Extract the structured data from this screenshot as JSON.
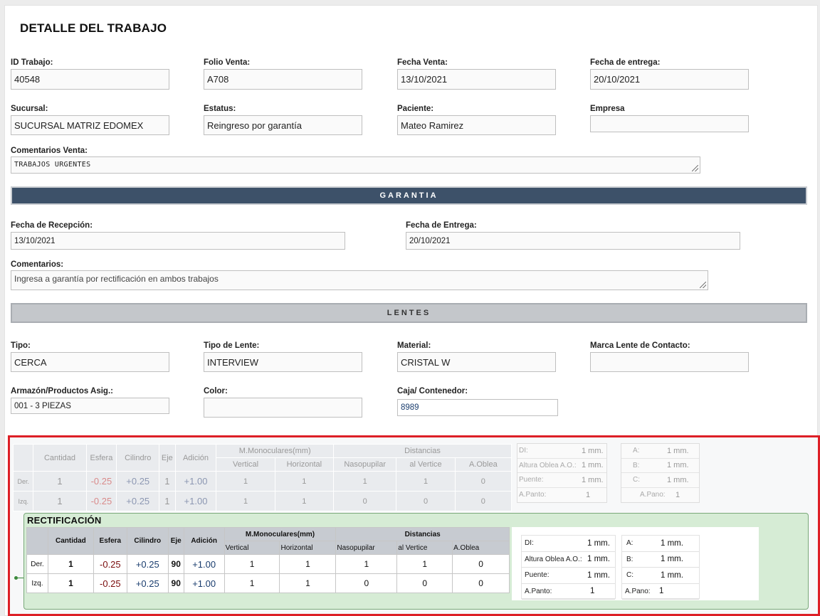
{
  "page": {
    "title": "DETALLE DEL TRABAJO"
  },
  "job": {
    "id_label": "ID Trabajo:",
    "id_value": "40548",
    "folio_label": "Folio Venta:",
    "folio_value": "A708",
    "fecha_venta_label": "Fecha Venta:",
    "fecha_venta_value": "13/10/2021",
    "fecha_entrega_label": "Fecha de entrega:",
    "fecha_entrega_value": "20/10/2021",
    "sucursal_label": "Sucursal:",
    "sucursal_value": "SUCURSAL MATRIZ EDOMEX",
    "estatus_label": "Estatus:",
    "estatus_value": "Reingreso por garantía",
    "paciente_label": "Paciente:",
    "paciente_value": "Mateo Ramirez",
    "empresa_label": "Empresa",
    "empresa_value": "",
    "comentarios_label": "Comentarios Venta:",
    "comentarios_value": "TRABAJOS URGENTES"
  },
  "garantia": {
    "header": "GARANTIA",
    "recepcion_label": "Fecha de Recepción:",
    "recepcion_value": "13/10/2021",
    "entrega_label": "Fecha de Entrega:",
    "entrega_value": "20/10/2021",
    "comentarios_label": "Comentarios:",
    "comentarios_value": "Ingresa a garantía por rectificación en ambos trabajos"
  },
  "lentes": {
    "header": "LENTES",
    "tipo_label": "Tipo:",
    "tipo_value": "CERCA",
    "tipo_lente_label": "Tipo de Lente:",
    "tipo_lente_value": "INTERVIEW",
    "material_label": "Material:",
    "material_value": "CRISTAL W",
    "marca_label": "Marca Lente de Contacto:",
    "marca_value": "",
    "armazon_label": "Armazón/Productos Asig.:",
    "armazon_value": "001 - 3 PIEZAS",
    "color_label": "Color:",
    "color_value": "",
    "caja_label": "Caja/ Contenedor:",
    "caja_value": "8989"
  },
  "graduacion": {
    "headers": {
      "cantidad": "Cantidad",
      "esfera": "Esfera",
      "cilindro": "Cilindro",
      "eje": "Eje",
      "adicion": "Adición",
      "monoculares": "M.Monoculares(mm)",
      "distancias": "Distancias",
      "vertical": "Vertical",
      "horizontal": "Horizontal",
      "nasopupilar": "Nasopupilar",
      "al_vertice": "al Vertice",
      "a_oblea": "A.Oblea"
    },
    "rows": [
      {
        "label": "Der.",
        "cantidad": "1",
        "esfera": "-0.25",
        "cilindro": "+0.25",
        "eje": "1",
        "adicion": "+1.00",
        "vertical": "1",
        "horizontal": "1",
        "nasopupilar": "1",
        "al_vertice": "1",
        "a_oblea": "0"
      },
      {
        "label": "Izq.",
        "cantidad": "1",
        "esfera": "-0.25",
        "cilindro": "+0.25",
        "eje": "1",
        "adicion": "+1.00",
        "vertical": "1",
        "horizontal": "1",
        "nasopupilar": "0",
        "al_vertice": "0",
        "a_oblea": "0"
      }
    ],
    "side_a": [
      {
        "k": "DI:",
        "v": "1 mm."
      },
      {
        "k": "Altura Oblea A.O.:",
        "v": "1 mm."
      },
      {
        "k": "Puente:",
        "v": "1 mm."
      },
      {
        "k": "A.Panto:",
        "v": "1"
      }
    ],
    "side_b": [
      {
        "k": "A:",
        "v": "1 mm."
      },
      {
        "k": "B:",
        "v": "1 mm."
      },
      {
        "k": "C:",
        "v": "1 mm."
      },
      {
        "k": "A.Pano:",
        "v": "1"
      }
    ]
  },
  "rectificacion": {
    "title": "RECTIFICACIÓN",
    "headers": {
      "cantidad": "Cantidad",
      "esfera": "Esfera",
      "cilindro": "Cilindro",
      "eje": "Eje",
      "adicion": "Adición",
      "monoculares": "M.Monoculares(mm)",
      "distancias": "Distancias",
      "vertical": "Vertical",
      "horizontal": "Horizontal",
      "nasopupilar": "Nasopupilar",
      "al_vertice": "al Vertice",
      "a_oblea": "A.Oblea"
    },
    "rows": [
      {
        "label": "Der.",
        "cantidad": "1",
        "esfera": "-0.25",
        "cilindro": "+0.25",
        "eje": "90",
        "adicion": "+1.00",
        "vertical": "1",
        "horizontal": "1",
        "nasopupilar": "1",
        "al_vertice": "1",
        "a_oblea": "0"
      },
      {
        "label": "Izq.",
        "cantidad": "1",
        "esfera": "-0.25",
        "cilindro": "+0.25",
        "eje": "90",
        "adicion": "+1.00",
        "vertical": "1",
        "horizontal": "1",
        "nasopupilar": "0",
        "al_vertice": "0",
        "a_oblea": "0"
      }
    ],
    "side_a": [
      {
        "k": "DI:",
        "v": "1 mm."
      },
      {
        "k": "Altura Oblea A.O.:",
        "v": "1 mm."
      },
      {
        "k": "Puente:",
        "v": "1 mm."
      },
      {
        "k": "A.Panto:",
        "v": "1"
      }
    ],
    "side_b": [
      {
        "k": "A:",
        "v": "1 mm."
      },
      {
        "k": "B:",
        "v": "1 mm."
      },
      {
        "k": "C:",
        "v": "1 mm."
      },
      {
        "k": "A.Pano:",
        "v": "1"
      }
    ]
  },
  "colors": {
    "band_dark": "#3d5169",
    "band_gray": "#c4c7cb",
    "highlight": "#dd1f26",
    "rect_bg": "#d6ecd5"
  }
}
